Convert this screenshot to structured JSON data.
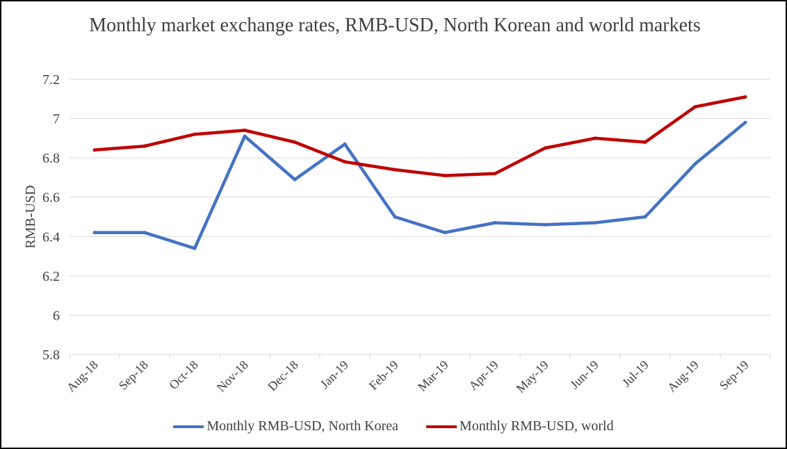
{
  "chart_data": {
    "type": "line",
    "title": "Monthly market exchange rates, RMB-USD, North Korean and world markets",
    "ylabel": "RMB-USD",
    "xlabel": "",
    "ylim": [
      5.8,
      7.2
    ],
    "yticks": [
      "5.8",
      "6",
      "6.2",
      "6.4",
      "6.6",
      "6.8",
      "7",
      "7.2"
    ],
    "grid": true,
    "legend_position": "bottom",
    "categories": [
      "Aug-18",
      "Sep-18",
      "Oct-18",
      "Nov-18",
      "Dec-18",
      "Jan-19",
      "Feb-19",
      "Mar-19",
      "Apr-19",
      "May-19",
      "Jun-19",
      "Jul-19",
      "Aug-19",
      "Sep-19"
    ],
    "series": [
      {
        "name": "Monthly RMB-USD, North Korea",
        "color": "#4472C4",
        "values": [
          6.42,
          6.42,
          6.34,
          6.91,
          6.69,
          6.87,
          6.5,
          6.42,
          6.47,
          6.46,
          6.47,
          6.5,
          6.77,
          6.98
        ]
      },
      {
        "name": "Monthly RMB-USD, world",
        "color": "#C00000",
        "values": [
          6.84,
          6.86,
          6.92,
          6.94,
          6.88,
          6.78,
          6.74,
          6.71,
          6.72,
          6.85,
          6.9,
          6.88,
          7.06,
          7.11
        ]
      }
    ]
  }
}
